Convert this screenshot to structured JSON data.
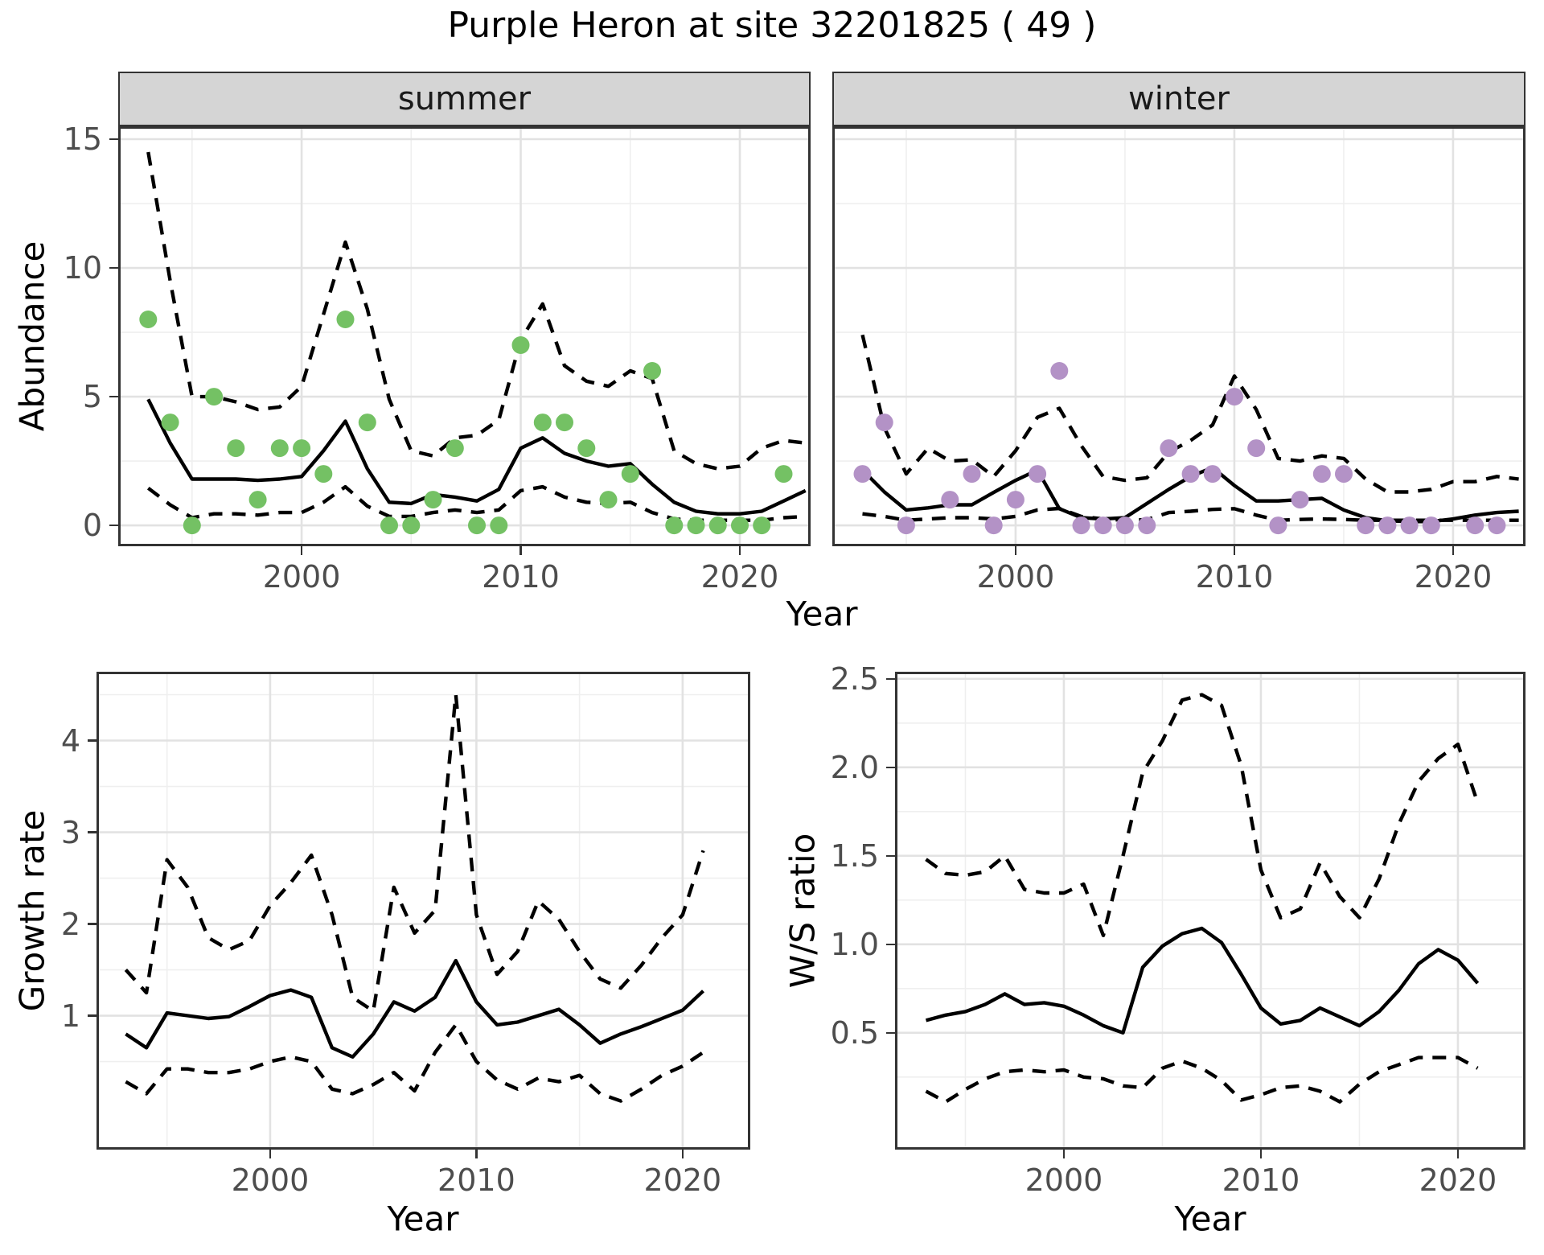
{
  "title": "Purple Heron at site 32201825 ( 49 )",
  "axes": {
    "abundance_label": "Abundance",
    "growth_label": "Growth rate",
    "ws_label": "W/S ratio",
    "year_label": "Year"
  },
  "colors": {
    "summer_points": "#74c164",
    "winter_points": "#b392c6",
    "line": "#000000",
    "strip_fill": "#d5d5d5",
    "grid_major": "#e2e2e2",
    "grid_minor": "#efefef",
    "panel_border": "#333333",
    "tick_text": "#4d4d4d"
  },
  "chart_data": [
    {
      "id": "abundance_summer",
      "type": "line+scatter",
      "facet_label": "summer",
      "xlabel": "Year",
      "ylabel": "Abundance",
      "xlim": [
        1991.63,
        2023.23
      ],
      "ylim": [
        -0.81,
        15.5
      ],
      "xticks": [
        2000,
        2010,
        2020
      ],
      "xtick_labels": [
        "2000",
        "2010",
        "2020"
      ],
      "xminor": [
        1995,
        2005,
        2015
      ],
      "yticks": [
        0,
        5,
        10,
        15
      ],
      "ytick_labels": [
        "0",
        "5",
        "10",
        "15"
      ],
      "yminor": [
        2.5,
        7.5,
        12.5
      ],
      "point_color": "#74c164",
      "points": {
        "years": [
          1993,
          1994,
          1995,
          1996,
          1997,
          1998,
          1999,
          2000,
          2001,
          2002,
          2003,
          2004,
          2005,
          2006,
          2007,
          2008,
          2009,
          2010,
          2011,
          2012,
          2013,
          2014,
          2015,
          2016,
          2017,
          2018,
          2019,
          2020,
          2021,
          2022
        ],
        "values": [
          8,
          4,
          0,
          5,
          3,
          1,
          3,
          3,
          2,
          8,
          4,
          0,
          0,
          1,
          3,
          0,
          0,
          7,
          4,
          4,
          3,
          1,
          2,
          6,
          0,
          0,
          0,
          0,
          0,
          2
        ]
      },
      "series": [
        {
          "name": "fit",
          "style": "solid",
          "years": [
            1993,
            1994,
            1995,
            1996,
            1997,
            1998,
            1999,
            2000,
            2001,
            2002,
            2003,
            2004,
            2005,
            2006,
            2007,
            2008,
            2009,
            2010,
            2011,
            2012,
            2013,
            2014,
            2015,
            2016,
            2017,
            2018,
            2019,
            2020,
            2021,
            2022,
            2023
          ],
          "values": [
            4.9,
            3.2,
            1.8,
            1.8,
            1.8,
            1.75,
            1.8,
            1.9,
            2.9,
            4.05,
            2.2,
            0.9,
            0.85,
            1.2,
            1.1,
            0.95,
            1.4,
            3.0,
            3.4,
            2.8,
            2.5,
            2.3,
            2.4,
            1.6,
            0.9,
            0.55,
            0.45,
            0.45,
            0.55,
            0.95,
            1.35
          ]
        },
        {
          "name": "upper95",
          "style": "dashed",
          "years": [
            1993,
            1994,
            1995,
            1996,
            1997,
            1998,
            1999,
            2000,
            2001,
            2002,
            2003,
            2004,
            2005,
            2006,
            2007,
            2008,
            2009,
            2010,
            2011,
            2012,
            2013,
            2014,
            2015,
            2016,
            2017,
            2018,
            2019,
            2020,
            2021,
            2022,
            2023
          ],
          "values": [
            14.5,
            9.5,
            5.0,
            5.0,
            4.8,
            4.5,
            4.6,
            5.4,
            8.2,
            11.0,
            8.4,
            4.9,
            2.9,
            2.7,
            3.4,
            3.5,
            4.1,
            7.2,
            8.6,
            6.2,
            5.6,
            5.4,
            6.0,
            5.7,
            2.9,
            2.4,
            2.2,
            2.3,
            3.0,
            3.3,
            3.2
          ]
        },
        {
          "name": "lower95",
          "style": "dashed",
          "years": [
            1993,
            1994,
            1995,
            1996,
            1997,
            1998,
            1999,
            2000,
            2001,
            2002,
            2003,
            2004,
            2005,
            2006,
            2007,
            2008,
            2009,
            2010,
            2011,
            2012,
            2013,
            2014,
            2015,
            2016,
            2017,
            2018,
            2019,
            2020,
            2021,
            2022,
            2023
          ],
          "values": [
            1.45,
            0.8,
            0.3,
            0.45,
            0.45,
            0.4,
            0.5,
            0.5,
            0.9,
            1.5,
            0.75,
            0.35,
            0.35,
            0.5,
            0.6,
            0.5,
            0.6,
            1.35,
            1.5,
            1.1,
            0.9,
            0.85,
            0.9,
            0.5,
            0.25,
            0.2,
            0.2,
            0.2,
            0.2,
            0.3,
            0.35
          ]
        }
      ]
    },
    {
      "id": "abundance_winter",
      "type": "line+scatter",
      "facet_label": "winter",
      "xlabel": "Year",
      "ylabel": "Abundance",
      "xlim": [
        1991.62,
        2023.31
      ],
      "ylim": [
        -0.81,
        15.5
      ],
      "xticks": [
        2000,
        2010,
        2020
      ],
      "xtick_labels": [
        "2000",
        "2010",
        "2020"
      ],
      "xminor": [
        1995,
        2005,
        2015
      ],
      "yticks": [
        0,
        5,
        10,
        15
      ],
      "ytick_labels": [
        "0",
        "5",
        "10",
        "15"
      ],
      "yminor": [
        2.5,
        7.5,
        12.5
      ],
      "point_color": "#b392c6",
      "points": {
        "years": [
          1993,
          1994,
          1995,
          1997,
          1998,
          1999,
          2000,
          2001,
          2002,
          2003,
          2004,
          2005,
          2006,
          2007,
          2008,
          2009,
          2010,
          2011,
          2012,
          2013,
          2014,
          2015,
          2016,
          2017,
          2018,
          2019,
          2021,
          2022
        ],
        "values": [
          2,
          4,
          0,
          1,
          2,
          0,
          1,
          2,
          6,
          0,
          0,
          0,
          0,
          3,
          2,
          2,
          5,
          3,
          0,
          1,
          2,
          2,
          0,
          0,
          0,
          0,
          0,
          0
        ]
      },
      "series": [
        {
          "name": "fit",
          "style": "solid",
          "years": [
            1993,
            1994,
            1995,
            1996,
            1997,
            1998,
            1999,
            2000,
            2001,
            2002,
            2003,
            2004,
            2005,
            2006,
            2007,
            2008,
            2009,
            2010,
            2011,
            2012,
            2013,
            2014,
            2015,
            2016,
            2017,
            2018,
            2019,
            2020,
            2021,
            2022,
            2023
          ],
          "values": [
            2.15,
            1.3,
            0.6,
            0.68,
            0.8,
            0.8,
            1.28,
            1.75,
            2.15,
            0.65,
            0.3,
            0.25,
            0.3,
            0.85,
            1.4,
            1.9,
            2.25,
            1.55,
            0.95,
            0.95,
            1.0,
            1.05,
            0.6,
            0.3,
            0.18,
            0.15,
            0.15,
            0.25,
            0.4,
            0.5,
            0.55
          ]
        },
        {
          "name": "upper95",
          "style": "dashed",
          "years": [
            1993,
            1994,
            1995,
            1996,
            1997,
            1998,
            1999,
            2000,
            2001,
            2002,
            2003,
            2004,
            2005,
            2006,
            2007,
            2008,
            2009,
            2010,
            2011,
            2012,
            2013,
            2014,
            2015,
            2016,
            2017,
            2018,
            2019,
            2020,
            2021,
            2022,
            2023
          ],
          "values": [
            7.4,
            3.8,
            2.0,
            3.0,
            2.5,
            2.55,
            1.9,
            2.9,
            4.2,
            4.55,
            3.1,
            1.9,
            1.75,
            1.85,
            2.85,
            3.3,
            3.9,
            5.8,
            4.5,
            2.6,
            2.5,
            2.7,
            2.6,
            1.8,
            1.3,
            1.3,
            1.4,
            1.7,
            1.7,
            1.9,
            1.8
          ]
        },
        {
          "name": "lower95",
          "style": "dashed",
          "years": [
            1993,
            1994,
            1995,
            1996,
            1997,
            1998,
            1999,
            2000,
            2001,
            2002,
            2003,
            2004,
            2005,
            2006,
            2007,
            2008,
            2009,
            2010,
            2011,
            2012,
            2013,
            2014,
            2015,
            2016,
            2017,
            2018,
            2019,
            2020,
            2021,
            2022,
            2023
          ],
          "values": [
            0.45,
            0.35,
            0.2,
            0.25,
            0.3,
            0.3,
            0.25,
            0.35,
            0.6,
            0.66,
            0.35,
            0.25,
            0.2,
            0.22,
            0.5,
            0.55,
            0.62,
            0.65,
            0.4,
            0.2,
            0.23,
            0.25,
            0.23,
            0.2,
            0.2,
            0.2,
            0.2,
            0.2,
            0.2,
            0.2,
            0.2
          ]
        }
      ]
    },
    {
      "id": "growth_rate",
      "type": "line",
      "facet_label": null,
      "xlabel": "Year",
      "ylabel": "Growth rate",
      "xlim": [
        1991.58,
        2023.28
      ],
      "ylim": [
        -0.46,
        4.75
      ],
      "xticks": [
        2000,
        2010,
        2020
      ],
      "xtick_labels": [
        "2000",
        "2010",
        "2020"
      ],
      "xminor": [
        1995,
        2005,
        2015
      ],
      "yticks": [
        1,
        2,
        3,
        4
      ],
      "ytick_labels": [
        "1",
        "2",
        "3",
        "4"
      ],
      "yminor": [
        0.5,
        1.5,
        2.5,
        3.5,
        4.5
      ],
      "series": [
        {
          "name": "fit",
          "style": "solid",
          "years": [
            1993,
            1994,
            1995,
            1996,
            1997,
            1998,
            1999,
            2000,
            2001,
            2002,
            2003,
            2004,
            2005,
            2006,
            2007,
            2008,
            2009,
            2010,
            2011,
            2012,
            2013,
            2014,
            2015,
            2016,
            2017,
            2018,
            2019,
            2020,
            2021
          ],
          "values": [
            0.8,
            0.65,
            1.03,
            1.0,
            0.97,
            0.99,
            1.1,
            1.22,
            1.28,
            1.2,
            0.65,
            0.55,
            0.8,
            1.15,
            1.05,
            1.2,
            1.6,
            1.15,
            0.9,
            0.93,
            1.0,
            1.07,
            0.9,
            0.7,
            0.8,
            0.88,
            0.97,
            1.06,
            1.27
          ]
        },
        {
          "name": "upper95",
          "style": "dashed",
          "years": [
            1993,
            1994,
            1995,
            1996,
            1997,
            1998,
            1999,
            2000,
            2001,
            2002,
            2003,
            2004,
            2005,
            2006,
            2007,
            2008,
            2009,
            2010,
            2011,
            2012,
            2013,
            2014,
            2015,
            2016,
            2017,
            2018,
            2019,
            2020,
            2021
          ],
          "values": [
            1.5,
            1.25,
            2.7,
            2.4,
            1.85,
            1.72,
            1.82,
            2.2,
            2.45,
            2.75,
            2.1,
            1.2,
            1.05,
            2.4,
            1.9,
            2.15,
            4.5,
            2.1,
            1.45,
            1.7,
            2.25,
            2.05,
            1.7,
            1.4,
            1.3,
            1.55,
            1.85,
            2.1,
            2.8
          ]
        },
        {
          "name": "lower95",
          "style": "dashed",
          "years": [
            1993,
            1994,
            1995,
            1996,
            1997,
            1998,
            1999,
            2000,
            2001,
            2002,
            2003,
            2004,
            2005,
            2006,
            2007,
            2008,
            2009,
            2010,
            2011,
            2012,
            2013,
            2014,
            2015,
            2016,
            2017,
            2018,
            2019,
            2020,
            2021
          ],
          "values": [
            0.28,
            0.15,
            0.42,
            0.42,
            0.38,
            0.38,
            0.42,
            0.5,
            0.55,
            0.5,
            0.2,
            0.15,
            0.25,
            0.38,
            0.18,
            0.6,
            0.9,
            0.5,
            0.3,
            0.2,
            0.32,
            0.28,
            0.35,
            0.15,
            0.07,
            0.2,
            0.35,
            0.45,
            0.6
          ]
        }
      ]
    },
    {
      "id": "ws_ratio",
      "type": "line",
      "facet_label": null,
      "xlabel": "Year",
      "ylabel": "W/S ratio",
      "xlim": [
        1991.43,
        2023.43
      ],
      "ylim": [
        -0.16,
        2.54
      ],
      "xticks": [
        2000,
        2010,
        2020
      ],
      "xtick_labels": [
        "2000",
        "2010",
        "2020"
      ],
      "xminor": [
        1995,
        2005,
        2015
      ],
      "yticks": [
        0.5,
        1.0,
        1.5,
        2.0,
        2.5
      ],
      "ytick_labels": [
        "0.5",
        "1.0",
        "1.5",
        "2.0",
        "2.5"
      ],
      "yminor": [
        0.25,
        0.75,
        1.25,
        1.75,
        2.25
      ],
      "series": [
        {
          "name": "fit",
          "style": "solid",
          "years": [
            1993,
            1994,
            1995,
            1996,
            1997,
            1998,
            1999,
            2000,
            2001,
            2002,
            2003,
            2004,
            2005,
            2006,
            2007,
            2008,
            2009,
            2010,
            2011,
            2012,
            2013,
            2014,
            2015,
            2016,
            2017,
            2018,
            2019,
            2020,
            2021
          ],
          "values": [
            0.57,
            0.6,
            0.62,
            0.66,
            0.72,
            0.66,
            0.67,
            0.65,
            0.6,
            0.54,
            0.5,
            0.87,
            0.99,
            1.06,
            1.09,
            1.01,
            0.83,
            0.64,
            0.55,
            0.57,
            0.64,
            0.59,
            0.54,
            0.62,
            0.74,
            0.89,
            0.97,
            0.91,
            0.78
          ]
        },
        {
          "name": "upper95",
          "style": "dashed",
          "years": [
            1993,
            1994,
            1995,
            1996,
            1997,
            1998,
            1999,
            2000,
            2001,
            2002,
            2003,
            2004,
            2005,
            2006,
            2007,
            2008,
            2009,
            2010,
            2011,
            2012,
            2013,
            2014,
            2015,
            2016,
            2017,
            2018,
            2019,
            2020,
            2021
          ],
          "values": [
            1.48,
            1.4,
            1.39,
            1.41,
            1.5,
            1.31,
            1.29,
            1.29,
            1.34,
            1.05,
            1.5,
            1.97,
            2.15,
            2.38,
            2.41,
            2.35,
            2.01,
            1.42,
            1.15,
            1.2,
            1.46,
            1.27,
            1.15,
            1.37,
            1.68,
            1.92,
            2.05,
            2.13,
            1.8
          ]
        },
        {
          "name": "lower95",
          "style": "dashed",
          "years": [
            1993,
            1994,
            1995,
            1996,
            1997,
            1998,
            1999,
            2000,
            2001,
            2002,
            2003,
            2004,
            2005,
            2006,
            2007,
            2008,
            2009,
            2010,
            2011,
            2012,
            2013,
            2014,
            2015,
            2016,
            2017,
            2018,
            2019,
            2020,
            2021
          ],
          "values": [
            0.17,
            0.11,
            0.18,
            0.24,
            0.28,
            0.29,
            0.28,
            0.29,
            0.25,
            0.24,
            0.2,
            0.19,
            0.3,
            0.34,
            0.3,
            0.23,
            0.12,
            0.15,
            0.19,
            0.2,
            0.17,
            0.11,
            0.21,
            0.28,
            0.32,
            0.36,
            0.36,
            0.36,
            0.3
          ]
        }
      ]
    }
  ]
}
